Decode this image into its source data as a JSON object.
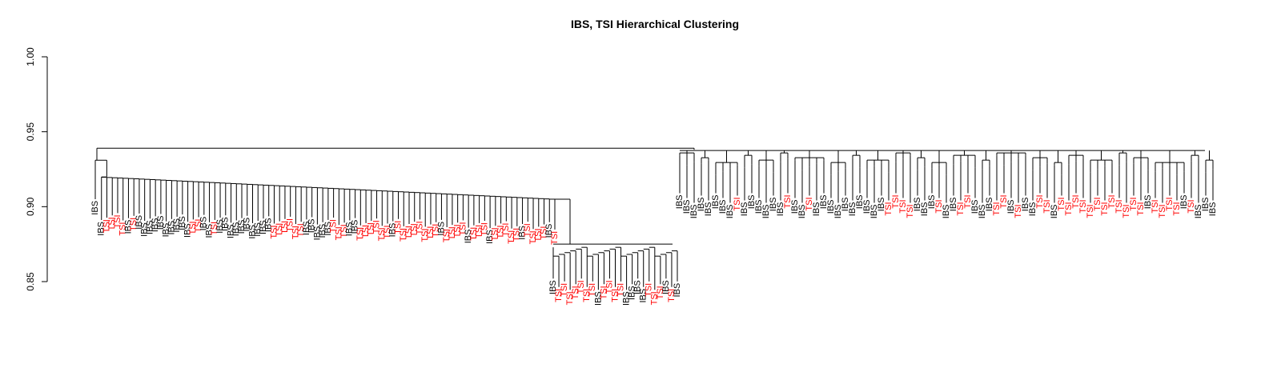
{
  "chart_data": {
    "type": "dendrogram",
    "title": "IBS, TSI Hierarchical Clustering",
    "xlabel": "",
    "ylabel": "",
    "ylim": [
      0.85,
      1.0
    ],
    "yticks": [
      "0.85",
      "0.90",
      "0.95",
      "1.00"
    ],
    "root_height": 0.939,
    "colors": {
      "IBS": "#000000",
      "TSI": "#ff0000",
      "branch": "#000000"
    },
    "clusters": [
      {
        "name": "left",
        "merge_height": 0.939,
        "left_height": 0.931,
        "right_height": 0.905,
        "sub_a": [
          "IBS",
          "IBS"
        ],
        "sub_a_height": 0.92,
        "chain_top": 0.92,
        "chain_bottom": 0.905,
        "leaves": [
          "IBS",
          "IBS",
          "TSI",
          "TSI",
          "TSI",
          "TSI",
          "IBS",
          "TSI",
          "IBS",
          "IBS",
          "IBS",
          "IBS",
          "IBS",
          "IBS",
          "IBS",
          "IBS",
          "IBS",
          "IBS",
          "TSI",
          "TSI",
          "IBS",
          "IBS",
          "TSI",
          "IBS",
          "IBS",
          "IBS",
          "IBS",
          "IBS",
          "IBS",
          "IBS",
          "IBS",
          "IBS",
          "IBS",
          "TSI",
          "TSI",
          "TSI",
          "TSI",
          "TSI",
          "TSI",
          "IBS",
          "IBS",
          "IBS",
          "IBS",
          "IBS",
          "TSI",
          "TSI",
          "TSI",
          "IBS",
          "IBS",
          "TSI",
          "TSI",
          "TSI",
          "TSI",
          "TSI",
          "TSI",
          "IBS",
          "TSI",
          "TSI",
          "TSI",
          "TSI",
          "TSI",
          "TSI",
          "TSI",
          "TSI",
          "IBS",
          "TSI",
          "TSI",
          "TSI",
          "TSI",
          "IBS",
          "TSI",
          "TSI",
          "TSI",
          "IBS",
          "TSI",
          "TSI",
          "TSI",
          "TSI",
          "TSI",
          "IBS",
          "TSI",
          "TSI",
          "TSI",
          "TSI",
          "IBS",
          "TSI"
        ]
      },
      {
        "name": "low",
        "merge_height": 0.875,
        "leaves": [
          "IBS",
          "TSI",
          "TSI",
          "TSI",
          "TSI",
          "TSI",
          "TSI",
          "TSI",
          "IBS",
          "TSI",
          "TSI",
          "TSI",
          "TSI",
          "IBS",
          "IBS",
          "IBS",
          "IBS",
          "TSI",
          "TSI",
          "TSI",
          "IBS",
          "TSI",
          "IBS"
        ]
      },
      {
        "name": "right",
        "merge_height": 0.938,
        "leaves": [
          "IBS",
          "IBS",
          "IBS",
          "IBS",
          "IBS",
          "IBS",
          "IBS",
          "IBS",
          "TSI",
          "IBS",
          "IBS",
          "IBS",
          "IBS",
          "IBS",
          "IBS",
          "TSI",
          "IBS",
          "IBS",
          "TSI",
          "IBS",
          "IBS",
          "IBS",
          "IBS",
          "IBS",
          "IBS",
          "IBS",
          "IBS",
          "IBS",
          "IBS",
          "TSI",
          "TSI",
          "TSI",
          "TSI",
          "IBS",
          "IBS",
          "IBS",
          "TSI",
          "IBS",
          "IBS",
          "TSI",
          "TSI",
          "IBS",
          "IBS",
          "IBS",
          "TSI",
          "TSI",
          "IBS",
          "TSI",
          "IBS",
          "IBS",
          "TSI",
          "TSI",
          "IBS",
          "TSI",
          "TSI",
          "TSI",
          "TSI",
          "TSI",
          "TSI",
          "TSI",
          "TSI",
          "TSI",
          "TSI",
          "TSI",
          "TSI",
          "IBS",
          "TSI",
          "TSI",
          "TSI",
          "TSI",
          "IBS",
          "TSI",
          "IBS",
          "IBS",
          "IBS"
        ]
      }
    ]
  }
}
